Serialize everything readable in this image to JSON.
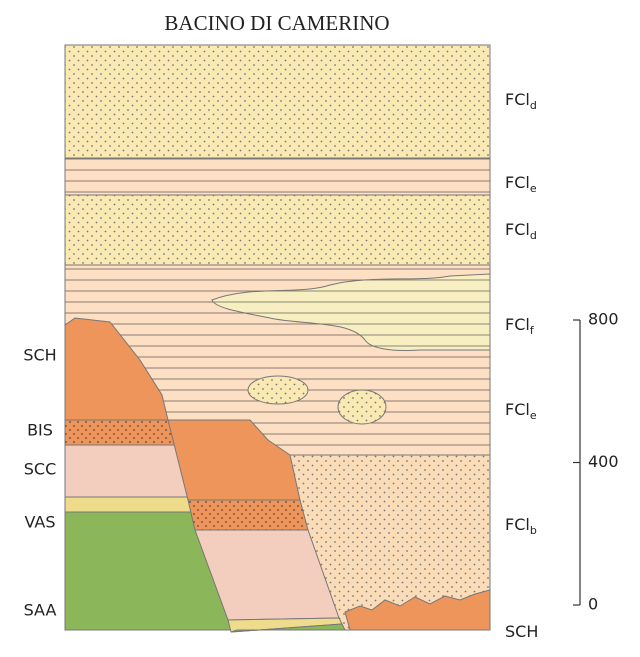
{
  "title": "BACINO DI CAMERINO",
  "left_labels": [
    "SCH",
    "BIS",
    "SCC",
    "VAS",
    "SAA"
  ],
  "right_labels": [
    {
      "text": "FCl",
      "sub": "d"
    },
    {
      "text": "FCl",
      "sub": "e"
    },
    {
      "text": "FCl",
      "sub": "d"
    },
    {
      "text": "FCl",
      "sub": "f"
    },
    {
      "text": "FCl",
      "sub": "e"
    },
    {
      "text": "FCl",
      "sub": "b"
    },
    {
      "text": "SCH"
    }
  ],
  "scale": {
    "ticks": [
      0,
      400,
      800
    ]
  }
}
